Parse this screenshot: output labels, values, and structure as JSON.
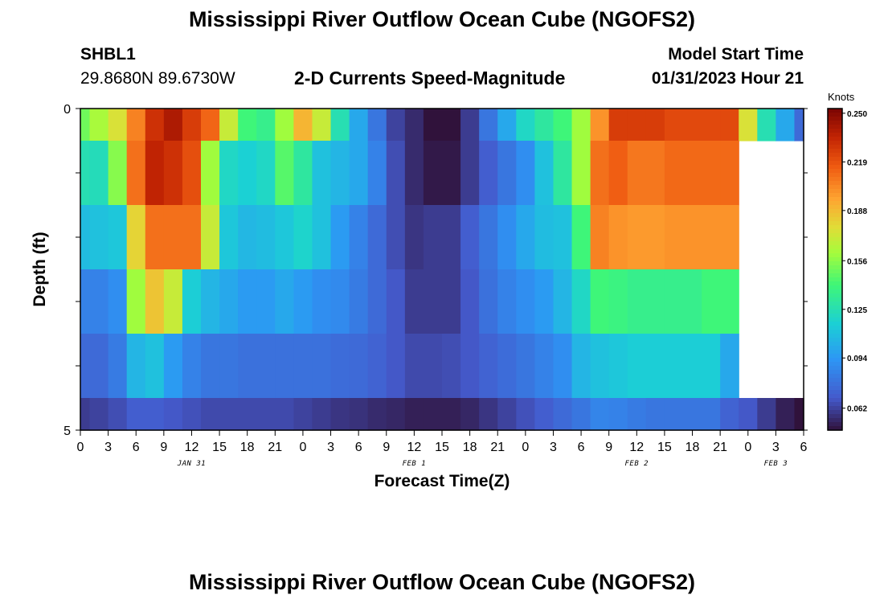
{
  "header": {
    "title": "Mississippi River Outflow Ocean Cube (NGOFS2)",
    "station_id": "SHBL1",
    "station_coords": "29.8680N  89.6730W",
    "subtitle": "2-D Currents Speed-Magnitude",
    "model_start_label": "Model Start Time",
    "model_start_value": "01/31/2023 Hour 21"
  },
  "footer": {
    "next_title": "Mississippi River Outflow Ocean Cube (NGOFS2)"
  },
  "chart_data": {
    "type": "heatmap",
    "title": "2-D Currents Speed-Magnitude",
    "xlabel": "Forecast Time(Z)",
    "ylabel": "Depth (ft)",
    "x_tick_labels": [
      "0",
      "3",
      "6",
      "9",
      "12",
      "15",
      "18",
      "21",
      "0",
      "3",
      "6",
      "9",
      "12",
      "15",
      "18",
      "21",
      "0",
      "3",
      "6",
      "9",
      "12",
      "15",
      "18",
      "21",
      "0",
      "3",
      "6"
    ],
    "date_labels": [
      {
        "label": "JAN 31",
        "x_hour": 12
      },
      {
        "label": "FEB 1",
        "x_hour": 36
      },
      {
        "label": "FEB 2",
        "x_hour": 60
      },
      {
        "label": "FEB 3",
        "x_hour": 75
      }
    ],
    "x_range_hours": [
      0,
      78
    ],
    "y_tick_labels": [
      "0",
      "5"
    ],
    "ylim": [
      0,
      5
    ],
    "depth_rows": [
      0,
      1,
      2,
      3,
      4,
      5
    ],
    "colorbar": {
      "title": "Knots",
      "min": 0.048,
      "max": 0.253,
      "tick_labels": [
        "0.250",
        "0.219",
        "0.188",
        "0.156",
        "0.125",
        "0.094",
        "0.062"
      ],
      "tick_values": [
        0.25,
        0.219,
        0.188,
        0.156,
        0.125,
        0.094,
        0.062
      ]
    },
    "hours": [
      0,
      2,
      4,
      6,
      8,
      10,
      12,
      14,
      16,
      18,
      20,
      22,
      24,
      26,
      28,
      30,
      32,
      34,
      36,
      38,
      40,
      42,
      44,
      46,
      48,
      50,
      52,
      54,
      56,
      58,
      60,
      62,
      64,
      66,
      68,
      70,
      72,
      74,
      76,
      78
    ],
    "values": [
      [
        0.15,
        0.162,
        0.175,
        0.205,
        0.23,
        0.24,
        0.226,
        0.213,
        0.17,
        0.14,
        0.135,
        0.16,
        0.19,
        0.17,
        0.125,
        0.1,
        0.08,
        0.062,
        0.055,
        0.045,
        0.045,
        0.06,
        0.08,
        0.1,
        0.12,
        0.13,
        0.14,
        0.16,
        0.2,
        0.226,
        0.226,
        0.226,
        0.222,
        0.222,
        0.222,
        0.222,
        0.175,
        0.125,
        0.1,
        0.075
      ],
      [
        0.125,
        0.123,
        0.155,
        0.21,
        0.235,
        0.23,
        0.22,
        0.16,
        0.12,
        0.116,
        0.12,
        0.145,
        0.13,
        0.11,
        0.105,
        0.1,
        0.085,
        0.065,
        0.055,
        0.05,
        0.05,
        0.06,
        0.07,
        0.08,
        0.09,
        0.11,
        0.13,
        0.16,
        0.21,
        0.215,
        0.208,
        0.208,
        0.212,
        0.212,
        0.212,
        0.212,
        null,
        null,
        null,
        null
      ],
      [
        0.108,
        0.11,
        0.112,
        0.18,
        0.21,
        0.21,
        0.21,
        0.17,
        0.112,
        0.106,
        0.108,
        0.112,
        0.118,
        0.11,
        0.095,
        0.085,
        0.075,
        0.065,
        0.058,
        0.06,
        0.06,
        0.07,
        0.08,
        0.09,
        0.1,
        0.108,
        0.11,
        0.14,
        0.205,
        0.2,
        0.198,
        0.198,
        0.2,
        0.2,
        0.2,
        0.2,
        null,
        null,
        null,
        null
      ],
      [
        0.085,
        0.085,
        0.09,
        0.16,
        0.185,
        0.17,
        0.115,
        0.105,
        0.1,
        0.095,
        0.095,
        0.1,
        0.095,
        0.09,
        0.088,
        0.082,
        0.075,
        0.068,
        0.06,
        0.06,
        0.06,
        0.068,
        0.078,
        0.085,
        0.09,
        0.095,
        0.105,
        0.12,
        0.14,
        0.138,
        0.135,
        0.135,
        0.135,
        0.135,
        0.14,
        0.14,
        null,
        null,
        null,
        null
      ],
      [
        0.075,
        0.075,
        0.082,
        0.105,
        0.11,
        0.095,
        0.085,
        0.08,
        0.08,
        0.078,
        0.078,
        0.078,
        0.078,
        0.078,
        0.076,
        0.075,
        0.072,
        0.068,
        0.064,
        0.064,
        0.065,
        0.068,
        0.072,
        0.076,
        0.08,
        0.085,
        0.09,
        0.105,
        0.11,
        0.112,
        0.115,
        0.115,
        0.115,
        0.115,
        0.115,
        0.1,
        null,
        null,
        null,
        null
      ],
      [
        0.06,
        0.062,
        0.065,
        0.07,
        0.07,
        0.068,
        0.066,
        0.064,
        0.064,
        0.064,
        0.064,
        0.064,
        0.062,
        0.06,
        0.058,
        0.057,
        0.055,
        0.054,
        0.052,
        0.052,
        0.052,
        0.054,
        0.058,
        0.062,
        0.066,
        0.07,
        0.075,
        0.08,
        0.086,
        0.085,
        0.082,
        0.08,
        0.08,
        0.08,
        0.08,
        0.072,
        0.068,
        0.06,
        0.052,
        0.048
      ]
    ]
  }
}
